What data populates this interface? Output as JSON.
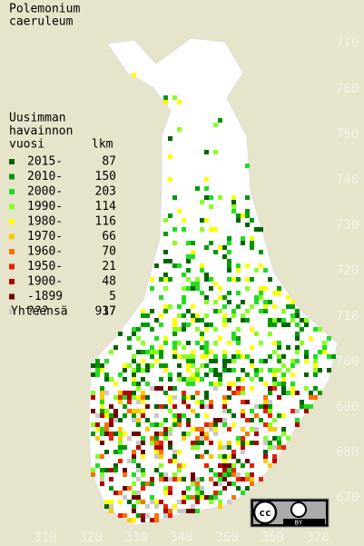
{
  "title": [
    "Polemonium",
    "caeruleum"
  ],
  "legend": {
    "heading": [
      "Uusimman",
      "havainnon",
      "vuosi"
    ],
    "count_heading": "lkm",
    "items": [
      {
        "label": "2015-",
        "count": "87",
        "color": "#006400"
      },
      {
        "label": "2010-",
        "count": "150",
        "color": "#009a00"
      },
      {
        "label": "2000-",
        "count": "203",
        "color": "#22dd22"
      },
      {
        "label": "1990-",
        "count": "114",
        "color": "#88ff22"
      },
      {
        "label": "1980-",
        "count": "116",
        "color": "#ffff00"
      },
      {
        "label": "1970-",
        "count": "66",
        "color": "#ffc800"
      },
      {
        "label": "1960-",
        "count": "70",
        "color": "#ff7000"
      },
      {
        "label": "1950-",
        "count": "21",
        "color": "#e82000"
      },
      {
        "label": "1900-",
        "count": "48",
        "color": "#b00000"
      },
      {
        "label": "-1899",
        "count": "5",
        "color": "#700000"
      },
      {
        "label": "???",
        "count": "37",
        "color": "#c8c8c8"
      }
    ],
    "total_label": "Yhteensä",
    "total": "917"
  },
  "axis_right": [
    "770",
    "760",
    "750",
    "740",
    "730",
    "720",
    "710",
    "700",
    "690",
    "680",
    "670"
  ],
  "axis_bottom": [
    "310",
    "320",
    "330",
    "340",
    "350",
    "360",
    "370"
  ],
  "license": {
    "badge": "cc",
    "by": "BY"
  }
}
